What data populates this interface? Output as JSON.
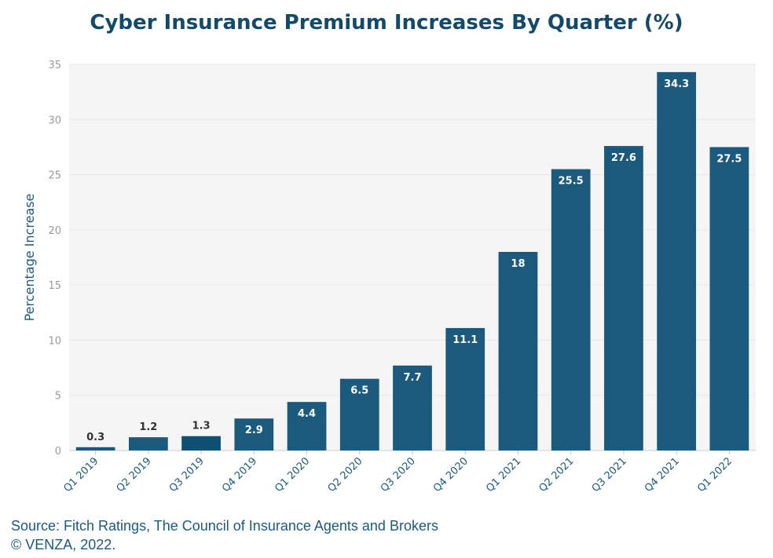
{
  "chart_data": {
    "type": "bar",
    "title": "Cyber Insurance Premium Increases By Quarter (%)",
    "xlabel": "",
    "ylabel": "Percentage Increase",
    "categories": [
      "Q1 2019",
      "Q2 2019",
      "Q3 2019",
      "Q4 2019",
      "Q1 2020",
      "Q2 2020",
      "Q3 2020",
      "Q4 2020",
      "Q1 2021",
      "Q2 2021",
      "Q3 2021",
      "Q4 2021",
      "Q1 2022"
    ],
    "values": [
      0.3,
      1.2,
      1.3,
      2.9,
      4.4,
      6.5,
      7.7,
      11.1,
      18,
      25.5,
      27.6,
      34.3,
      27.5
    ],
    "data_labels": [
      "0.3",
      "1.2",
      "1.3",
      "2.9",
      "4.4",
      "6.5",
      "7.7",
      "11.1",
      "18",
      "25.5",
      "27.6",
      "34.3",
      "27.5"
    ],
    "ylim": [
      0,
      35
    ],
    "yticks": [
      0,
      5,
      10,
      15,
      20,
      25,
      30,
      35
    ],
    "ytick_labels": [
      "0",
      "5",
      "10",
      "15",
      "20",
      "25",
      "30",
      "35"
    ],
    "grid": true,
    "legend": "none",
    "colors": {
      "bar": "#1b5a7c",
      "bar_highlight": "#0f4f72",
      "plot_background": "#f5f5f5",
      "title": "#134a6a",
      "axis_text": "#1b5a7c"
    }
  },
  "footer": {
    "source": "Source: Fitch Ratings, The Council of Insurance Agents and Brokers",
    "copyright": "© VENZA, 2022."
  }
}
